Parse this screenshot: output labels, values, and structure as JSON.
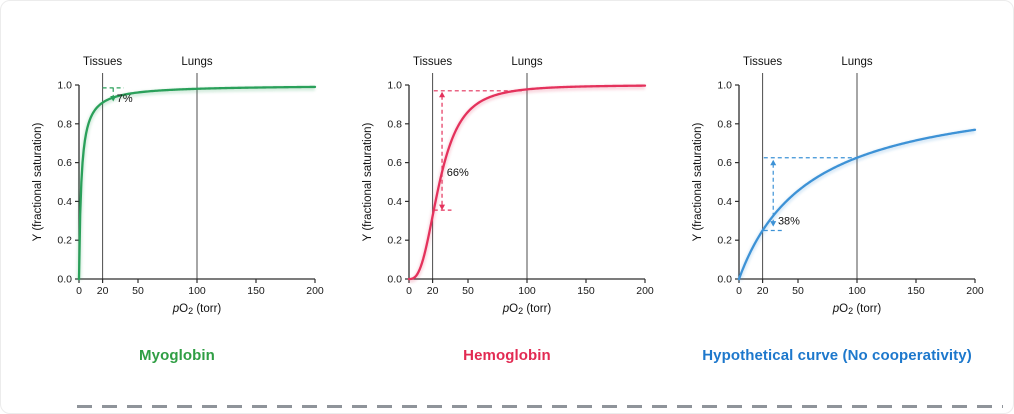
{
  "figure": {
    "background": "#ffffff",
    "divider_color": "#8f949a"
  },
  "chart_data": [
    {
      "type": "line",
      "title": "Myoglobin",
      "color": "#2aa05a",
      "title_color": "#2f9e44",
      "xlabel": "pO2 (torr)",
      "ylabel": "Y (fractional saturation)",
      "xlim": [
        0,
        200
      ],
      "ylim": [
        0,
        1.0
      ],
      "x_ticks": [
        0,
        20,
        50,
        100,
        150,
        200
      ],
      "y_ticks": [
        0,
        0.2,
        0.4,
        0.6,
        0.8,
        1.0
      ],
      "grid": false,
      "ref_lines": [
        {
          "x": 20,
          "label": "Tissues"
        },
        {
          "x": 100,
          "label": "Lungs"
        }
      ],
      "model": {
        "type": "hill",
        "p50": 2,
        "n": 1
      },
      "series": [
        {
          "name": "Myoglobin",
          "x": [
            0,
            1,
            2,
            3,
            5,
            10,
            20,
            50,
            100,
            150,
            200
          ],
          "y": [
            0,
            0.33,
            0.5,
            0.6,
            0.714,
            0.833,
            0.909,
            0.962,
            0.98,
            0.987,
            0.99
          ]
        }
      ],
      "saturation_at_tissues": 0.91,
      "saturation_at_lungs": 0.98,
      "difference_label": "7%",
      "annotation": {
        "label": "7%",
        "arrow_x": 29,
        "arrow_y_top": 0.985,
        "arrow_y_bottom": 0.915,
        "head_top": false,
        "head_bottom": true,
        "top_line": {
          "y": 0.985,
          "x1": 20,
          "x2": 38
        },
        "bottom_line": null,
        "label_x": 32,
        "label_y": 0.93
      }
    },
    {
      "type": "line",
      "title": "Hemoglobin",
      "color": "#e4325c",
      "title_color": "#e22a52",
      "xlabel": "pO2 (torr)",
      "ylabel": "Y (fractional saturation)",
      "xlim": [
        0,
        200
      ],
      "ylim": [
        0,
        1.0
      ],
      "x_ticks": [
        0,
        20,
        50,
        100,
        150,
        200
      ],
      "y_ticks": [
        0,
        0.2,
        0.4,
        0.6,
        0.8,
        1.0
      ],
      "grid": false,
      "ref_lines": [
        {
          "x": 20,
          "label": "Tissues"
        },
        {
          "x": 100,
          "label": "Lungs"
        }
      ],
      "model": {
        "type": "hill",
        "p50": 26,
        "n": 2.8
      },
      "series": [
        {
          "name": "Hemoglobin",
          "x": [
            0,
            5,
            10,
            15,
            20,
            26,
            30,
            40,
            50,
            60,
            80,
            100,
            150,
            200
          ],
          "y": [
            0,
            0.01,
            0.064,
            0.176,
            0.324,
            0.5,
            0.599,
            0.77,
            0.862,
            0.912,
            0.959,
            0.978,
            0.993,
            0.997
          ]
        }
      ],
      "saturation_at_tissues": 0.32,
      "saturation_at_lungs": 0.98,
      "difference_label": "66%",
      "annotation": {
        "label": "66%",
        "arrow_x": 28,
        "arrow_y_top": 0.965,
        "arrow_y_bottom": 0.355,
        "head_top": true,
        "head_bottom": true,
        "top_line": {
          "y": 0.97,
          "x1": 21,
          "x2": 97
        },
        "bottom_line": {
          "y": 0.355,
          "x1": 21,
          "x2": 36
        },
        "label_x": 32,
        "label_y": 0.55
      }
    },
    {
      "type": "line",
      "title": "Hypothetical curve (No cooperativity)",
      "color": "#3d92d6",
      "title_color": "#1d78cc",
      "xlabel": "pO2 (torr)",
      "ylabel": "Y (fractional saturation)",
      "xlim": [
        0,
        200
      ],
      "ylim": [
        0,
        1.0
      ],
      "x_ticks": [
        0,
        20,
        50,
        100,
        150,
        200
      ],
      "y_ticks": [
        0,
        0.2,
        0.4,
        0.6,
        0.8,
        1.0
      ],
      "grid": false,
      "ref_lines": [
        {
          "x": 20,
          "label": "Tissues"
        },
        {
          "x": 100,
          "label": "Lungs"
        }
      ],
      "model": {
        "type": "hill",
        "p50": 60,
        "n": 1
      },
      "series": [
        {
          "name": "Hypothetical curve",
          "x": [
            0,
            10,
            20,
            30,
            40,
            60,
            80,
            100,
            150,
            200
          ],
          "y": [
            0,
            0.143,
            0.25,
            0.333,
            0.4,
            0.5,
            0.571,
            0.625,
            0.714,
            0.769
          ]
        }
      ],
      "saturation_at_tissues": 0.25,
      "saturation_at_lungs": 0.62,
      "difference_label": "38%",
      "annotation": {
        "label": "38%",
        "arrow_x": 29,
        "arrow_y_top": 0.615,
        "arrow_y_bottom": 0.27,
        "head_top": true,
        "head_bottom": true,
        "top_line": {
          "y": 0.625,
          "x1": 21,
          "x2": 100
        },
        "bottom_line": {
          "y": 0.25,
          "x1": 21,
          "x2": 38
        },
        "label_x": 33,
        "label_y": 0.3
      }
    }
  ]
}
